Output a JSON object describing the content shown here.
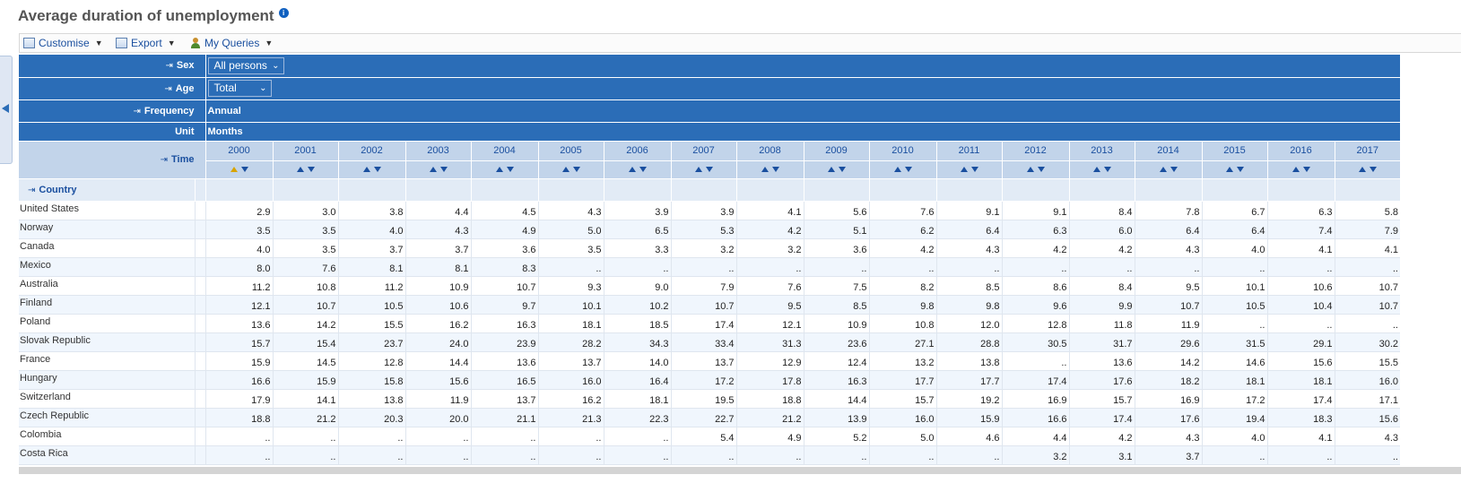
{
  "page": {
    "title": "Average duration of unemployment",
    "info_icon": "info-icon"
  },
  "toolbar": {
    "customise": "Customise",
    "export": "Export",
    "my_queries": "My Queries"
  },
  "filters": {
    "sex": {
      "label": "Sex",
      "value": "All persons"
    },
    "age": {
      "label": "Age",
      "value": "Total"
    },
    "frequency": {
      "label": "Frequency",
      "value": "Annual"
    },
    "unit": {
      "label": "Unit",
      "value": "Months"
    },
    "time": {
      "label": "Time"
    },
    "country": {
      "label": "Country"
    }
  },
  "years": [
    "2000",
    "2001",
    "2002",
    "2003",
    "2004",
    "2005",
    "2006",
    "2007",
    "2008",
    "2009",
    "2010",
    "2011",
    "2012",
    "2013",
    "2014",
    "2015",
    "2016",
    "2017"
  ],
  "rows": [
    {
      "country": "United States",
      "values": [
        "2.9",
        "3.0",
        "3.8",
        "4.4",
        "4.5",
        "4.3",
        "3.9",
        "3.9",
        "4.1",
        "5.6",
        "7.6",
        "9.1",
        "9.1",
        "8.4",
        "7.8",
        "6.7",
        "6.3",
        "5.8"
      ]
    },
    {
      "country": "Norway",
      "values": [
        "3.5",
        "3.5",
        "4.0",
        "4.3",
        "4.9",
        "5.0",
        "6.5",
        "5.3",
        "4.2",
        "5.1",
        "6.2",
        "6.4",
        "6.3",
        "6.0",
        "6.4",
        "6.4",
        "7.4",
        "7.9"
      ]
    },
    {
      "country": "Canada",
      "values": [
        "4.0",
        "3.5",
        "3.7",
        "3.7",
        "3.6",
        "3.5",
        "3.3",
        "3.2",
        "3.2",
        "3.6",
        "4.2",
        "4.3",
        "4.2",
        "4.2",
        "4.3",
        "4.0",
        "4.1",
        "4.1"
      ]
    },
    {
      "country": "Mexico",
      "values": [
        "8.0",
        "7.6",
        "8.1",
        "8.1",
        "8.3",
        "..",
        "..",
        "..",
        "..",
        "..",
        "..",
        "..",
        "..",
        "..",
        "..",
        "..",
        "..",
        ".."
      ]
    },
    {
      "country": "Australia",
      "values": [
        "11.2",
        "10.8",
        "11.2",
        "10.9",
        "10.7",
        "9.3",
        "9.0",
        "7.9",
        "7.6",
        "7.5",
        "8.2",
        "8.5",
        "8.6",
        "8.4",
        "9.5",
        "10.1",
        "10.6",
        "10.7"
      ]
    },
    {
      "country": "Finland",
      "values": [
        "12.1",
        "10.7",
        "10.5",
        "10.6",
        "9.7",
        "10.1",
        "10.2",
        "10.7",
        "9.5",
        "8.5",
        "9.8",
        "9.8",
        "9.6",
        "9.9",
        "10.7",
        "10.5",
        "10.4",
        "10.7"
      ]
    },
    {
      "country": "Poland",
      "values": [
        "13.6",
        "14.2",
        "15.5",
        "16.2",
        "16.3",
        "18.1",
        "18.5",
        "17.4",
        "12.1",
        "10.9",
        "10.8",
        "12.0",
        "12.8",
        "11.8",
        "11.9",
        "..",
        "..",
        ".."
      ]
    },
    {
      "country": "Slovak Republic",
      "values": [
        "15.7",
        "15.4",
        "23.7",
        "24.0",
        "23.9",
        "28.2",
        "34.3",
        "33.4",
        "31.3",
        "23.6",
        "27.1",
        "28.8",
        "30.5",
        "31.7",
        "29.6",
        "31.5",
        "29.1",
        "30.2"
      ]
    },
    {
      "country": "France",
      "values": [
        "15.9",
        "14.5",
        "12.8",
        "14.4",
        "13.6",
        "13.7",
        "14.0",
        "13.7",
        "12.9",
        "12.4",
        "13.2",
        "13.8",
        "..",
        "13.6",
        "14.2",
        "14.6",
        "15.6",
        "15.5"
      ]
    },
    {
      "country": "Hungary",
      "values": [
        "16.6",
        "15.9",
        "15.8",
        "15.6",
        "16.5",
        "16.0",
        "16.4",
        "17.2",
        "17.8",
        "16.3",
        "17.7",
        "17.7",
        "17.4",
        "17.6",
        "18.2",
        "18.1",
        "18.1",
        "16.0"
      ]
    },
    {
      "country": "Switzerland",
      "values": [
        "17.9",
        "14.1",
        "13.8",
        "11.9",
        "13.7",
        "16.2",
        "18.1",
        "19.5",
        "18.8",
        "14.4",
        "15.7",
        "19.2",
        "16.9",
        "15.7",
        "16.9",
        "17.2",
        "17.4",
        "17.1"
      ]
    },
    {
      "country": "Czech Republic",
      "values": [
        "18.8",
        "21.2",
        "20.3",
        "20.0",
        "21.1",
        "21.3",
        "22.3",
        "22.7",
        "21.2",
        "13.9",
        "16.0",
        "15.9",
        "16.6",
        "17.4",
        "17.6",
        "19.4",
        "18.3",
        "15.6"
      ]
    },
    {
      "country": "Colombia",
      "values": [
        "..",
        "..",
        "..",
        "..",
        "..",
        "..",
        "..",
        "5.4",
        "4.9",
        "5.2",
        "5.0",
        "4.6",
        "4.4",
        "4.2",
        "4.3",
        "4.0",
        "4.1",
        "4.3"
      ]
    },
    {
      "country": "Costa Rica",
      "values": [
        "..",
        "..",
        "..",
        "..",
        "..",
        "..",
        "..",
        "..",
        "..",
        "..",
        "..",
        "..",
        "3.2",
        "3.1",
        "3.7",
        "..",
        "..",
        ".."
      ]
    }
  ]
}
